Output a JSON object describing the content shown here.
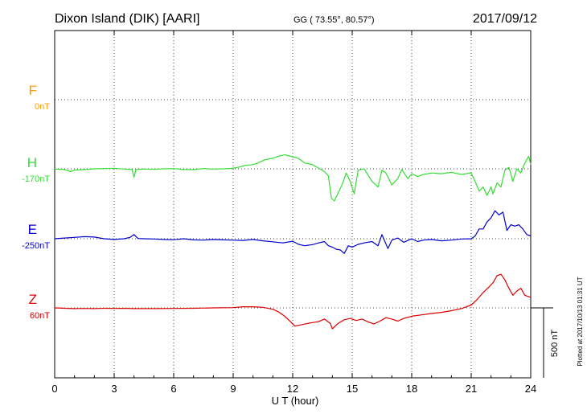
{
  "header": {
    "station": "Dixon Island (DIK)  [AARI]",
    "coords": "GG ( 73.55°,  80.57°)",
    "date": "2017/09/12"
  },
  "footer": {
    "plotted": "Plotted at 2017/10/13 01:31 UT"
  },
  "colors": {
    "F": "#ff9900",
    "H": "#33dd33",
    "E": "#0000cc",
    "Z": "#dd0000"
  },
  "chart_data": {
    "type": "line",
    "xlabel": "U T (hour)",
    "xlim": [
      0,
      24
    ],
    "x_ticks": [
      "0",
      "3",
      "6",
      "9",
      "12",
      "15",
      "18",
      "21",
      "24"
    ],
    "y_units": "nT",
    "scale_bar": {
      "label": "500 nT",
      "value": 500
    },
    "series": [
      {
        "name": "F",
        "baseline_label": "0nT",
        "baseline": 0,
        "x": [],
        "y": []
      },
      {
        "name": "H",
        "baseline_label": "-170nT",
        "baseline": -170,
        "x": [
          0,
          0.5,
          0.8,
          1,
          1.5,
          2,
          2.5,
          3,
          3.5,
          3.9,
          4,
          4.1,
          4.5,
          5,
          5.5,
          6,
          6.5,
          7,
          7.5,
          8,
          8.5,
          9,
          9.3,
          9.6,
          10,
          10.3,
          10.6,
          11,
          11.3,
          11.6,
          12,
          12.3,
          12.6,
          13,
          13.3,
          13.6,
          13.8,
          13.95,
          14.1,
          14.3,
          14.5,
          14.7,
          14.9,
          15.1,
          15.3,
          15.6,
          16,
          16.3,
          16.5,
          16.7,
          17,
          17.3,
          17.5,
          17.8,
          18,
          18.3,
          18.6,
          19,
          19.5,
          20,
          20.5,
          21,
          21.2,
          21.4,
          21.6,
          21.8,
          22,
          22.1,
          22.3,
          22.5,
          22.7,
          22.9,
          23.1,
          23.3,
          23.5,
          23.7,
          23.9,
          24
        ],
        "y": [
          -172,
          -175,
          -190,
          -180,
          -176,
          -170,
          -168,
          -166,
          -172,
          -175,
          -230,
          -175,
          -172,
          -174,
          -170,
          -168,
          -175,
          -176,
          -168,
          -172,
          -170,
          -166,
          -158,
          -145,
          -140,
          -125,
          -105,
          -95,
          -80,
          -70,
          -84,
          -96,
          -128,
          -140,
          -165,
          -190,
          -220,
          -380,
          -400,
          -340,
          -280,
          -200,
          -260,
          -350,
          -180,
          -170,
          -260,
          -300,
          -180,
          -200,
          -285,
          -240,
          -175,
          -240,
          -205,
          -225,
          -210,
          -200,
          -205,
          -195,
          -210,
          -200,
          -260,
          -330,
          -300,
          -360,
          -300,
          -350,
          -270,
          -300,
          -180,
          -160,
          -260,
          -170,
          -200,
          -130,
          -80,
          -140
        ]
      },
      {
        "name": "E",
        "baseline_label": "-250nT",
        "baseline": -250,
        "x": [
          0,
          0.5,
          1,
          1.5,
          2,
          2.5,
          3,
          3.5,
          3.8,
          4,
          4.2,
          4.5,
          5,
          5.5,
          6,
          6.5,
          7,
          7.5,
          8,
          8.5,
          9,
          9.5,
          10,
          10.5,
          11,
          11.5,
          12,
          12.3,
          12.6,
          13,
          13.3,
          13.6,
          13.8,
          14,
          14.2,
          14.4,
          14.6,
          14.8,
          15,
          15.3,
          15.6,
          16,
          16.3,
          16.5,
          16.8,
          17,
          17.3,
          17.6,
          18,
          18.3,
          18.6,
          19,
          19.5,
          20,
          20.5,
          21,
          21.2,
          21.4,
          21.6,
          21.8,
          22,
          22.2,
          22.4,
          22.6,
          22.8,
          23,
          23.2,
          23.4,
          23.6,
          23.8,
          24
        ],
        "y": [
          -250,
          -245,
          -240,
          -235,
          -238,
          -250,
          -255,
          -250,
          -240,
          -220,
          -248,
          -250,
          -252,
          -255,
          -257,
          -250,
          -258,
          -260,
          -255,
          -258,
          -260,
          -262,
          -255,
          -265,
          -272,
          -280,
          -268,
          -290,
          -300,
          -292,
          -280,
          -270,
          -300,
          -310,
          -325,
          -330,
          -355,
          -300,
          -310,
          -290,
          -280,
          -270,
          -300,
          -220,
          -320,
          -260,
          -245,
          -275,
          -250,
          -270,
          -260,
          -255,
          -265,
          -260,
          -252,
          -250,
          -230,
          -180,
          -180,
          -130,
          -100,
          -50,
          -80,
          -60,
          -190,
          -150,
          -160,
          -150,
          -180,
          -220,
          -230
        ]
      },
      {
        "name": "Z",
        "baseline_label": "60nT",
        "baseline": 60,
        "x": [
          0,
          0.5,
          1,
          1.5,
          2,
          2.5,
          3,
          3.5,
          4,
          5,
          6,
          7,
          8,
          9,
          9.5,
          10,
          10.5,
          11,
          11.3,
          11.6,
          11.9,
          12.1,
          12.4,
          12.8,
          13,
          13.3,
          13.6,
          13.9,
          14,
          14.3,
          14.6,
          14.9,
          15.2,
          15.5,
          15.8,
          16.1,
          16.4,
          16.7,
          17,
          17.3,
          17.6,
          18,
          18.5,
          19,
          19.5,
          20,
          20.5,
          21,
          21.3,
          21.6,
          21.9,
          22.1,
          22.3,
          22.5,
          22.7,
          22.9,
          23.1,
          23.3,
          23.5,
          23.7,
          24
        ],
        "y": [
          60,
          57,
          55,
          56,
          55,
          57,
          56,
          57,
          55,
          55,
          56,
          57,
          60,
          62,
          68,
          68,
          64,
          50,
          30,
          0,
          -40,
          -70,
          -62,
          -50,
          -45,
          -38,
          -20,
          -52,
          -90,
          -50,
          -25,
          -15,
          -30,
          -20,
          -40,
          -55,
          -35,
          -10,
          -20,
          -35,
          -15,
          0,
          10,
          20,
          28,
          40,
          55,
          80,
          120,
          170,
          210,
          240,
          290,
          300,
          260,
          200,
          150,
          180,
          200,
          150,
          135
        ]
      }
    ]
  }
}
